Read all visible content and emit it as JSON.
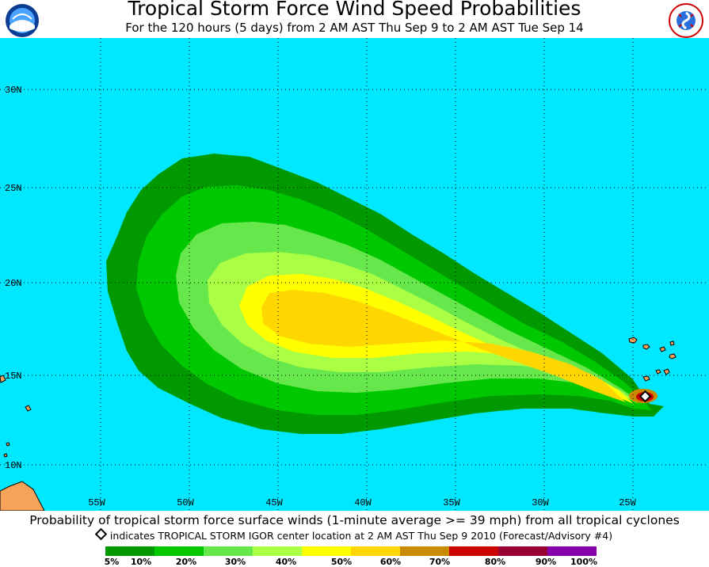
{
  "header": {
    "title": "Tropical Storm Force Wind Speed Probabilities",
    "subtitle": "For the 120 hours (5 days) from 2 AM AST Thu Sep 9 to 2 AM AST Tue Sep 14",
    "left_logo_text": "NOAA",
    "right_logo_text": "NATIONAL WEATHER SERVICE"
  },
  "map": {
    "ocean_color": "#00e8ff",
    "land_color": "#f6a25a",
    "lon_labels": [
      "55W",
      "50W",
      "45W",
      "40W",
      "35W",
      "30W",
      "25W"
    ],
    "lat_labels": [
      "30N",
      "25N",
      "20N",
      "15N",
      "10N"
    ],
    "storm_center": {
      "lon": -23.9,
      "lat": 13.8
    }
  },
  "footer": {
    "caption": "Probability of tropical storm force surface winds (1-minute average >= 39 mph) from all tropical cyclones",
    "storm_note": "indicates TROPICAL STORM IGOR center location at 2 AM AST Thu Sep 9 2010 (Forecast/Advisory #4)"
  },
  "legend": {
    "ticks": [
      "5%",
      "10%",
      "20%",
      "30%",
      "40%",
      "50%",
      "60%",
      "70%",
      "80%",
      "90%",
      "100%"
    ],
    "colors": [
      "#009900",
      "#00c800",
      "#66e84d",
      "#aaff44",
      "#ffff00",
      "#ffd700",
      "#d4a017",
      "#c88a00",
      "#cc0000",
      "#990033",
      "#8800aa"
    ]
  }
}
